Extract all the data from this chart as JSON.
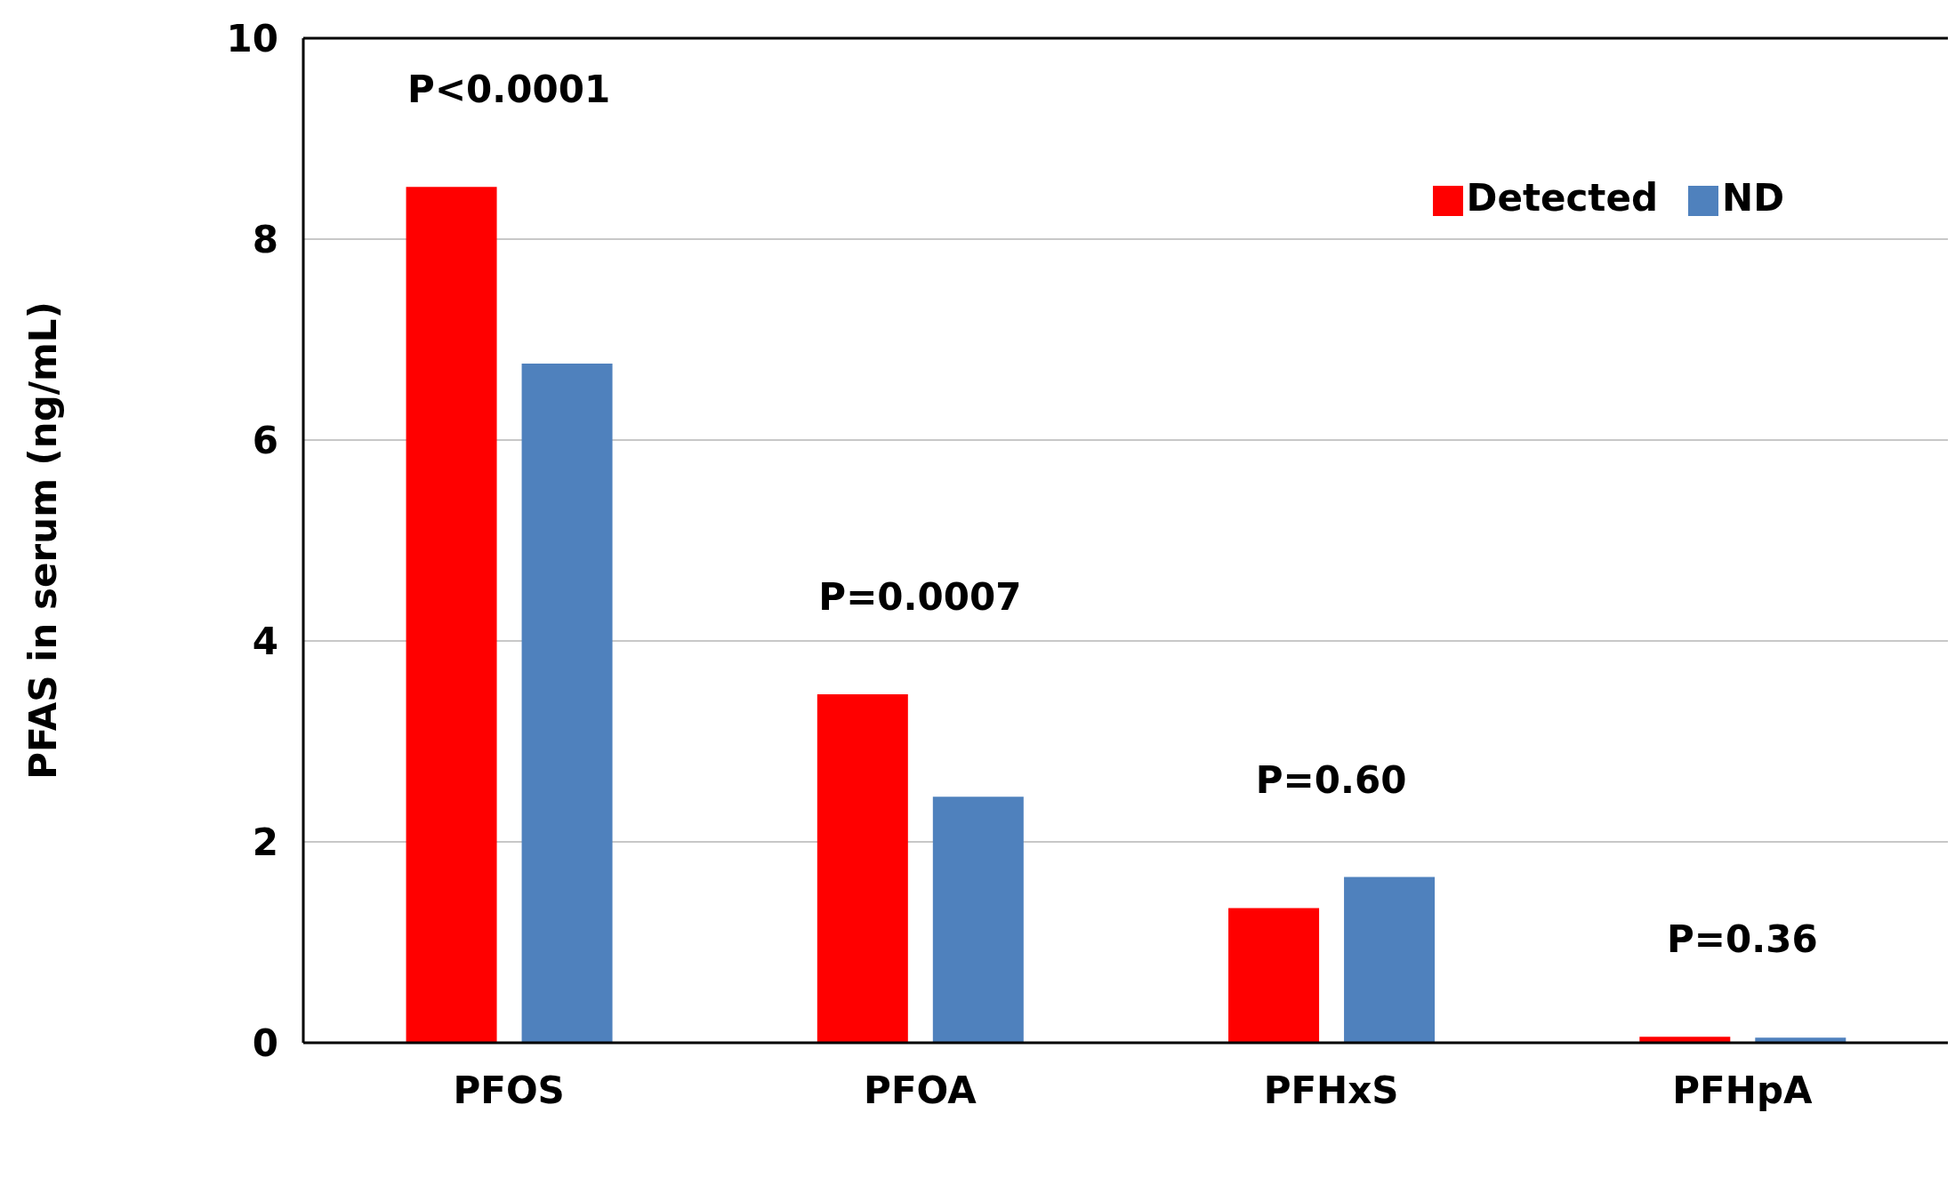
{
  "chart_data": {
    "type": "bar",
    "ylabel": "PFAS in serum (ng/mL)",
    "categories": [
      "PFOS",
      "PFOA",
      "PFHxS",
      "PFHpA"
    ],
    "series": [
      {
        "name": "Detected",
        "color": "#ff0000",
        "values": [
          8.52,
          3.47,
          1.34,
          0.06
        ]
      },
      {
        "name": "ND",
        "color": "#4f81bd",
        "values": [
          6.76,
          2.45,
          1.65,
          0.05
        ]
      }
    ],
    "ylim": [
      0,
      10
    ],
    "yticks": [
      0,
      2,
      4,
      6,
      8,
      10
    ],
    "grid": "y",
    "legend": "top right",
    "annotations": [
      "P<0.0001",
      "P=0.0007",
      "P=0.60",
      "P=0.36"
    ]
  }
}
